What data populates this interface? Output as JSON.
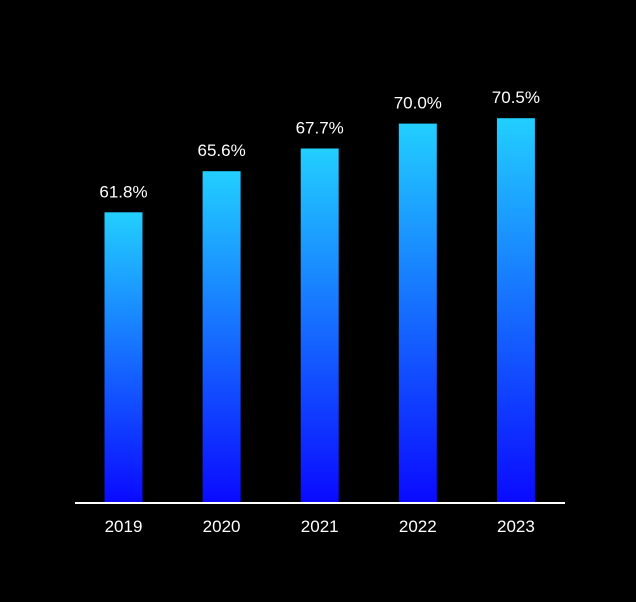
{
  "colors": {
    "background": "#000000",
    "bar_top": "#22CFFF",
    "bar_bottom": "#0A0AFF",
    "axis": "#FFFFFF",
    "text": "#FFFFFF"
  },
  "chart_data": {
    "type": "bar",
    "title": "",
    "xlabel": "",
    "ylabel": "",
    "categories": [
      "2019",
      "2020",
      "2021",
      "2022",
      "2023"
    ],
    "values": [
      61.8,
      65.6,
      67.7,
      70.0,
      70.5
    ],
    "data_labels": [
      "61.8%",
      "65.6%",
      "67.7%",
      "70.0%",
      "70.5%"
    ],
    "ylim": [
      35,
      72
    ],
    "grid": false,
    "legend": "none"
  }
}
